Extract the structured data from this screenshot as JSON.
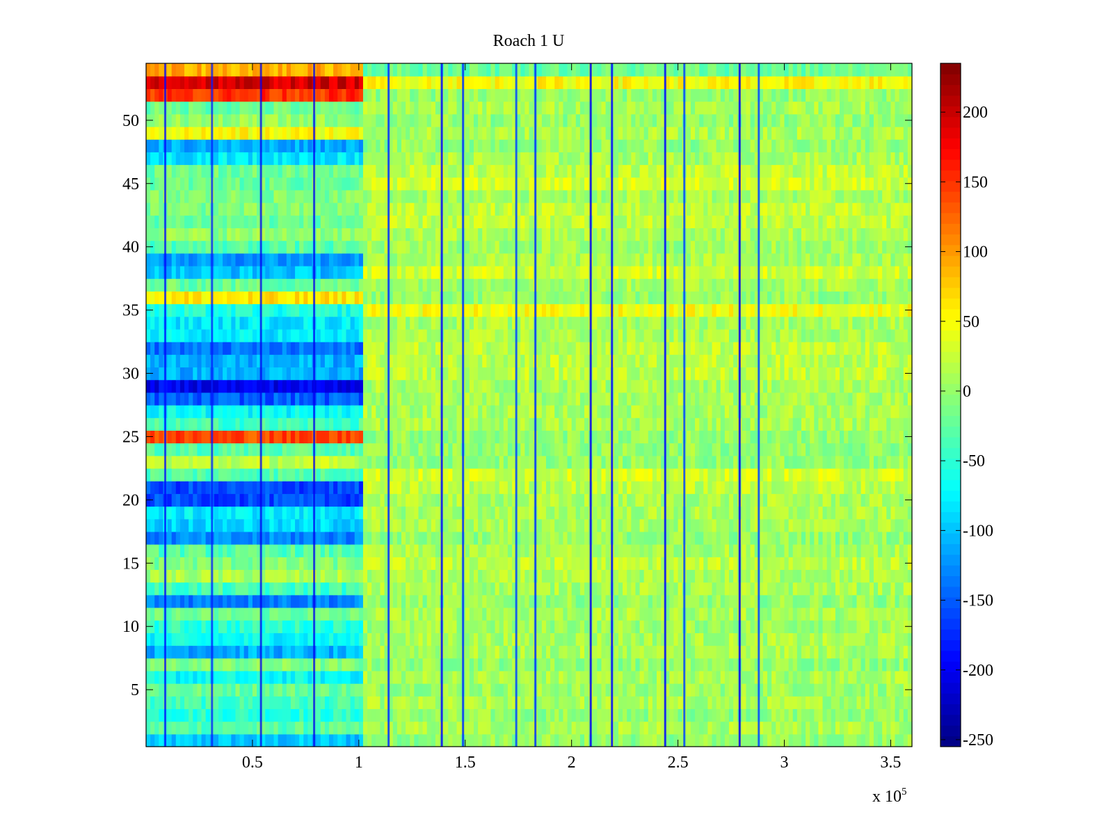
{
  "chart_data": {
    "type": "heatmap",
    "title": "Roach 1 U",
    "xlabel": "",
    "ylabel": "",
    "x_exponent_label": "x 10",
    "x_exponent_power": "5",
    "xlim": [
      0,
      360000
    ],
    "ylim": [
      0.5,
      54.5
    ],
    "x_ticks": [
      {
        "value": 50000,
        "label": "0.5"
      },
      {
        "value": 100000,
        "label": "1"
      },
      {
        "value": 150000,
        "label": "1.5"
      },
      {
        "value": 200000,
        "label": "2"
      },
      {
        "value": 250000,
        "label": "2.5"
      },
      {
        "value": 300000,
        "label": "3"
      },
      {
        "value": 350000,
        "label": "3.5"
      }
    ],
    "y_ticks": [
      {
        "value": 5,
        "label": "5"
      },
      {
        "value": 10,
        "label": "10"
      },
      {
        "value": 15,
        "label": "15"
      },
      {
        "value": 20,
        "label": "20"
      },
      {
        "value": 25,
        "label": "25"
      },
      {
        "value": 30,
        "label": "30"
      },
      {
        "value": 35,
        "label": "35"
      },
      {
        "value": 40,
        "label": "40"
      },
      {
        "value": 45,
        "label": "45"
      },
      {
        "value": 50,
        "label": "50"
      }
    ],
    "colormap": "jet",
    "clim": [
      -255,
      235
    ],
    "colorbar_ticks": [
      {
        "value": 200,
        "label": "200"
      },
      {
        "value": 150,
        "label": "150"
      },
      {
        "value": 100,
        "label": "100"
      },
      {
        "value": 50,
        "label": "50"
      },
      {
        "value": 0,
        "label": "0"
      },
      {
        "value": -50,
        "label": "-50"
      },
      {
        "value": -100,
        "label": "-100"
      },
      {
        "value": -150,
        "label": "-150"
      },
      {
        "value": -200,
        "label": "-200"
      },
      {
        "value": -250,
        "label": "-250"
      }
    ],
    "n_rows": 54,
    "phase_boundary_x": 103000,
    "row_means_early": [
      -100,
      -30,
      -50,
      -40,
      -20,
      -70,
      -10,
      -110,
      -70,
      -50,
      -20,
      -130,
      -40,
      10,
      -10,
      -30,
      -130,
      -90,
      -80,
      -160,
      -160,
      -30,
      20,
      -30,
      140,
      -40,
      -70,
      -150,
      -200,
      -110,
      -110,
      -140,
      -80,
      -80,
      -60,
      60,
      -20,
      -100,
      -120,
      -30,
      0,
      -20,
      -10,
      -10,
      -20,
      -20,
      -80,
      -110,
      50,
      0,
      -20,
      150,
      195,
      90
    ],
    "row_means_late": [
      0,
      10,
      0,
      10,
      5,
      10,
      0,
      10,
      10,
      5,
      10,
      0,
      10,
      10,
      20,
      10,
      0,
      10,
      10,
      10,
      20,
      30,
      0,
      0,
      0,
      10,
      10,
      10,
      10,
      20,
      20,
      20,
      10,
      10,
      45,
      0,
      10,
      30,
      10,
      5,
      10,
      20,
      20,
      10,
      30,
      20,
      10,
      0,
      10,
      0,
      10,
      0,
      50,
      -20
    ],
    "vertical_stripes": [
      {
        "x": 9000,
        "value": -190,
        "span": "early"
      },
      {
        "x": 31000,
        "value": -180,
        "span": "early"
      },
      {
        "x": 54000,
        "value": -200,
        "span": "early"
      },
      {
        "x": 79000,
        "value": -200,
        "span": "early"
      },
      {
        "x": 114000,
        "value": -170,
        "span": "full"
      },
      {
        "x": 139000,
        "value": -190,
        "span": "full"
      },
      {
        "x": 149000,
        "value": -170,
        "span": "full"
      },
      {
        "x": 174000,
        "value": -160,
        "span": "full"
      },
      {
        "x": 183000,
        "value": -170,
        "span": "full"
      },
      {
        "x": 209000,
        "value": -200,
        "span": "full"
      },
      {
        "x": 219000,
        "value": -190,
        "span": "full"
      },
      {
        "x": 244000,
        "value": -190,
        "span": "full"
      },
      {
        "x": 253000,
        "value": -160,
        "span": "full"
      },
      {
        "x": 279000,
        "value": -200,
        "span": "full"
      },
      {
        "x": 288000,
        "value": -160,
        "span": "full"
      }
    ]
  }
}
